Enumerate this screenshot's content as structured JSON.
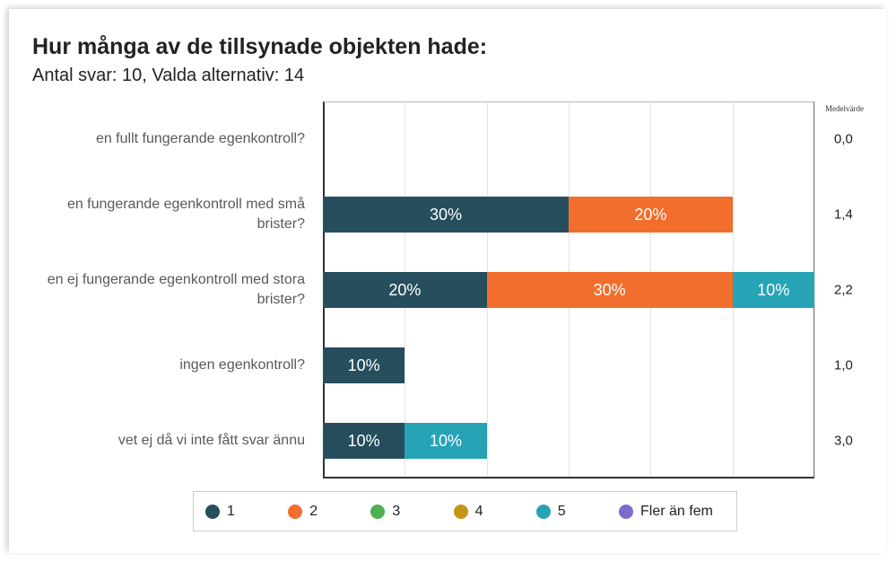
{
  "chart_data": {
    "type": "stacked-barh",
    "title": "Hur många av de tillsynade objekten hade:",
    "subtitle": "Antal svar: 10, Valda alternativ: 14",
    "categories": [
      "en fullt fungerande egenkontroll?",
      "en fungerande egenkontroll med små brister?",
      "en ej fungerande egenkontroll med stora brister?",
      "ingen egenkontroll?",
      "vet ej då vi inte fått svar ännu"
    ],
    "series": [
      {
        "name": "1",
        "color": "#264e5d",
        "values": [
          0,
          30,
          20,
          10,
          10
        ],
        "value_labels": [
          null,
          "30%",
          "20%",
          "10%",
          "10%"
        ]
      },
      {
        "name": "2",
        "color": "#f26e2c",
        "values": [
          0,
          20,
          30,
          0,
          0
        ],
        "value_labels": [
          null,
          "20%",
          "30%",
          null,
          null
        ]
      },
      {
        "name": "3",
        "color": "#4caf50",
        "values": [
          0,
          0,
          0,
          0,
          0
        ],
        "value_labels": [
          null,
          null,
          null,
          null,
          null
        ]
      },
      {
        "name": "4",
        "color": "#c59412",
        "values": [
          0,
          0,
          0,
          0,
          0
        ],
        "value_labels": [
          null,
          null,
          null,
          null,
          null
        ]
      },
      {
        "name": "5",
        "color": "#27a3b6",
        "values": [
          0,
          0,
          10,
          0,
          10
        ],
        "value_labels": [
          null,
          null,
          "10%",
          null,
          "10%"
        ]
      },
      {
        "name": "Fler än fem",
        "color": "#7e6ac9",
        "values": [
          0,
          0,
          0,
          0,
          0
        ],
        "value_labels": [
          null,
          null,
          null,
          null,
          null
        ]
      }
    ],
    "xlim": [
      0,
      60
    ],
    "xticks": [
      0,
      10,
      20,
      30,
      40,
      50,
      60
    ],
    "grid": true,
    "legend": "bottom",
    "means": {
      "label": "Medelvärde",
      "values": [
        0.0,
        1.4,
        2.2,
        1.0,
        3.0
      ],
      "value_labels": [
        "0,0",
        "1,4",
        "2,2",
        "1,0",
        "3,0"
      ]
    }
  }
}
